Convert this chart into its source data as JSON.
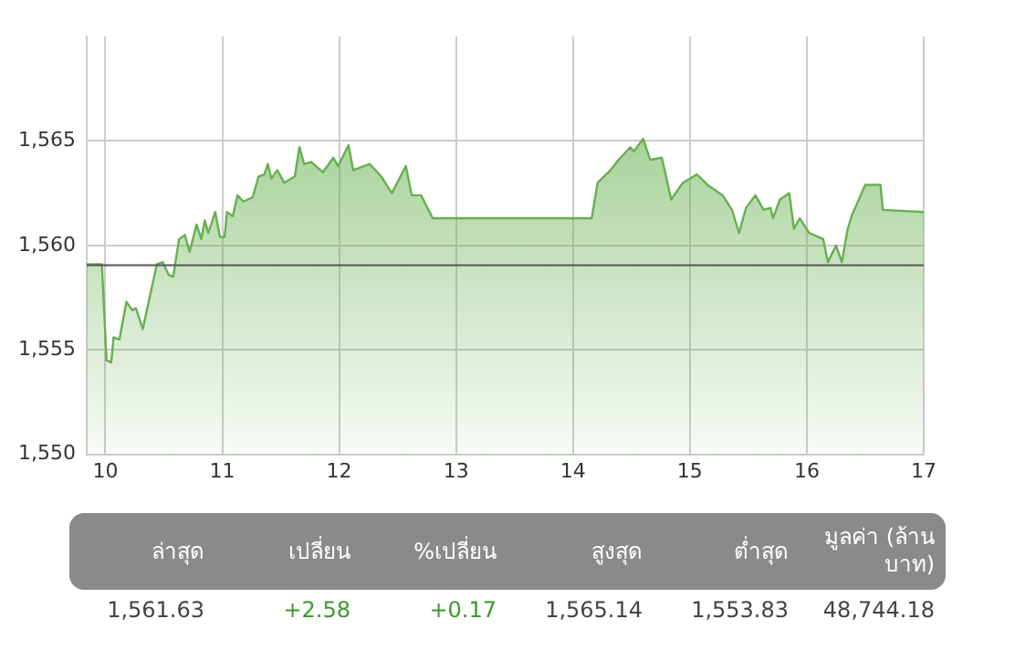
{
  "chart_data": {
    "type": "area",
    "x": [
      9.84,
      9.97,
      10.01,
      10.05,
      10.07,
      10.12,
      10.18,
      10.23,
      10.26,
      10.32,
      10.44,
      10.49,
      10.54,
      10.58,
      10.63,
      10.68,
      10.72,
      10.78,
      10.82,
      10.85,
      10.88,
      10.94,
      10.98,
      11.02,
      11.04,
      11.09,
      11.13,
      11.18,
      11.26,
      11.31,
      11.36,
      11.39,
      11.42,
      11.47,
      11.53,
      11.62,
      11.66,
      11.7,
      11.76,
      11.86,
      11.95,
      11.99,
      12.08,
      12.12,
      12.26,
      12.36,
      12.45,
      12.57,
      12.62,
      12.7,
      12.8,
      14.16,
      14.21,
      14.32,
      14.39,
      14.49,
      14.52,
      14.6,
      14.66,
      14.76,
      14.84,
      14.94,
      15.06,
      15.15,
      15.28,
      15.36,
      15.42,
      15.48,
      15.56,
      15.63,
      15.69,
      15.71,
      15.77,
      15.85,
      15.89,
      15.94,
      16.02,
      16.14,
      16.18,
      16.25,
      16.3,
      16.35,
      16.39,
      16.5,
      16.63,
      16.65,
      17
    ],
    "series": [
      {
        "color": "#66b050",
        "values": [
          1559.1,
          1559.1,
          1554.5,
          1554.4,
          1555.6,
          1555.5,
          1557.3,
          1556.9,
          1557,
          1556,
          1559.1,
          1559.2,
          1558.6,
          1558.5,
          1560.3,
          1560.5,
          1559.7,
          1561,
          1560.3,
          1561.2,
          1560.6,
          1561.6,
          1560.4,
          1560.4,
          1561.6,
          1561.4,
          1562.4,
          1562.1,
          1562.3,
          1563.3,
          1563.4,
          1563.9,
          1563.2,
          1563.6,
          1563,
          1563.3,
          1564.7,
          1563.9,
          1564,
          1563.5,
          1564.2,
          1563.8,
          1564.8,
          1563.6,
          1563.9,
          1563.3,
          1562.5,
          1563.8,
          1562.4,
          1562.4,
          1561.3,
          1561.3,
          1563,
          1563.6,
          1564.1,
          1564.7,
          1564.5,
          1565.1,
          1564.1,
          1564.2,
          1562.2,
          1563,
          1563.4,
          1562.9,
          1562.4,
          1561.7,
          1560.6,
          1561.8,
          1562.4,
          1561.7,
          1561.8,
          1561.3,
          1562.2,
          1562.5,
          1560.8,
          1561.3,
          1560.6,
          1560.3,
          1559.2,
          1560,
          1559.2,
          1560.8,
          1561.5,
          1562.9,
          1562.9,
          1561.7,
          1561.6
        ]
      }
    ],
    "xlim": [
      9.84,
      17
    ],
    "xticks": [
      10,
      11,
      12,
      13,
      14,
      15,
      16,
      17
    ],
    "ylim": [
      1550,
      1570
    ],
    "yticks": [
      {
        "value": 1550,
        "label": "1,550"
      },
      {
        "value": 1555,
        "label": "1,555"
      },
      {
        "value": 1560,
        "label": "1,560"
      },
      {
        "value": 1565,
        "label": "1,565"
      }
    ],
    "ref_lines": [
      {
        "axis": "y",
        "value": 1559.05,
        "color": "#555555"
      }
    ],
    "grid": true,
    "marker": "none",
    "annotations": [
      "ล่าสุด",
      "เปลี่ยน",
      "%เปลี่ยน",
      "สูงสุด",
      "ต่ำสุด",
      "มูลค่า (ล้านบาท)",
      "1,561.63",
      "+2.58",
      "+0.17",
      "1,565.14",
      "1,553.83",
      "48,744.18"
    ]
  }
}
